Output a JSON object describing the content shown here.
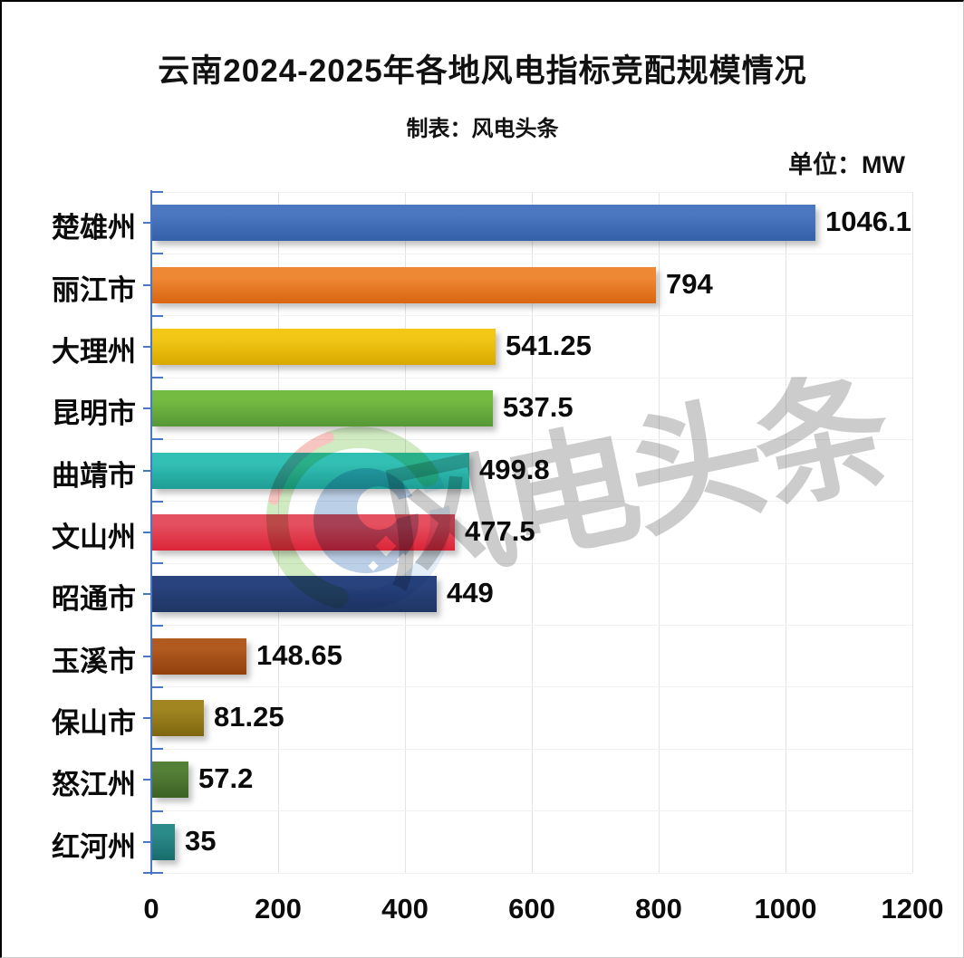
{
  "header": {
    "title": "云南2024-2025年各地风电指标竞配规模情况",
    "subtitle": "制表：风电头条",
    "unit_label": "单位：MW"
  },
  "watermark": {
    "text": "风电头条"
  },
  "chart_data": {
    "type": "bar",
    "orientation": "horizontal",
    "title": "云南2024-2025年各地风电指标竞配规模情况",
    "subtitle": "制表：风电头条",
    "unit": "MW",
    "categories": [
      "楚雄州",
      "丽江市",
      "大理州",
      "昆明市",
      "曲靖市",
      "文山州",
      "昭通市",
      "玉溪市",
      "保山市",
      "怒江州",
      "红河州"
    ],
    "values": [
      1046.1,
      794,
      541.25,
      537.5,
      499.8,
      477.5,
      449,
      148.65,
      81.25,
      57.2,
      35
    ],
    "value_labels": [
      "1046.1",
      "794",
      "541.25",
      "537.5",
      "499.8",
      "477.5",
      "449",
      "148.65",
      "81.25",
      "57.2",
      "35"
    ],
    "bar_colors": [
      {
        "light": "#4a77c0",
        "dark": "#3460a8"
      },
      {
        "light": "#ef8834",
        "dark": "#d9650f"
      },
      {
        "light": "#f2c716",
        "dark": "#d8a800"
      },
      {
        "light": "#74bb41",
        "dark": "#569737"
      },
      {
        "light": "#33c0b4",
        "dark": "#1e9e95"
      },
      {
        "light": "#e4505f",
        "dark": "#dc2438"
      },
      {
        "light": "#28437d",
        "dark": "#1f3564"
      },
      {
        "light": "#b05a20",
        "dark": "#933f0d"
      },
      {
        "light": "#a08521",
        "dark": "#7e660e"
      },
      {
        "light": "#558038",
        "dark": "#3c6124"
      },
      {
        "light": "#2b8b89",
        "dark": "#176c6b"
      }
    ],
    "x_ticks": [
      0,
      200,
      400,
      600,
      800,
      1000,
      1200
    ],
    "x_tick_labels": [
      "0",
      "200",
      "400",
      "600",
      "800",
      "1000",
      "1200"
    ],
    "xlim": [
      0,
      1200
    ],
    "axis_color": "#4a77c4",
    "grid": true,
    "legend": false
  }
}
